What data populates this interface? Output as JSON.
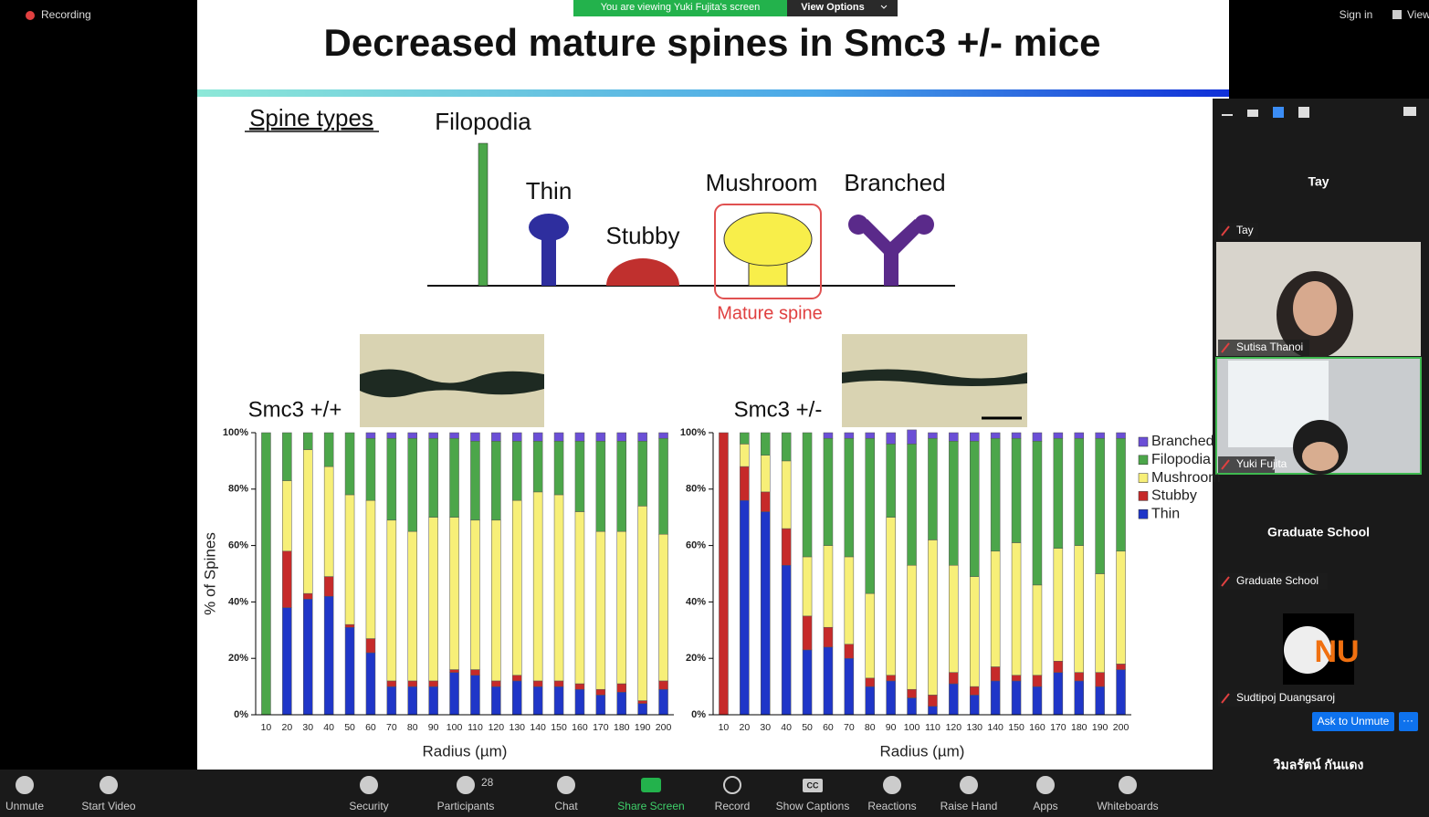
{
  "zoom": {
    "recording": "Recording",
    "banner": "You are viewing Yuki Fujita's screen",
    "view_options": "View Options",
    "sign_in": "Sign in",
    "view": "View"
  },
  "slide": {
    "title": "Decreased mature spines in Smc3 +/- mice",
    "spine_types": "Spine types",
    "labels": [
      "Filopodia",
      "Thin",
      "Stubby",
      "Mushroom",
      "Branched"
    ],
    "mature": "Mature spine",
    "genotypes": [
      "Smc3 +/+",
      "Smc3 +/-"
    ]
  },
  "chart_data": [
    {
      "type": "bar",
      "stacked": true,
      "categories": [
        "10",
        "20",
        "30",
        "40",
        "50",
        "60",
        "70",
        "80",
        "90",
        "100",
        "110",
        "120",
        "130",
        "140",
        "150",
        "160",
        "170",
        "180",
        "190",
        "200"
      ],
      "series": [
        {
          "color": "#1f36c8",
          "values": [
            0,
            38,
            41,
            42,
            31,
            22,
            10,
            10,
            10,
            15,
            14,
            10,
            12,
            10,
            10,
            9,
            7,
            8,
            4,
            9
          ]
        },
        {
          "color": "#c62a2a",
          "values": [
            0,
            20,
            2,
            7,
            1,
            5,
            2,
            2,
            2,
            1,
            2,
            2,
            2,
            2,
            2,
            2,
            2,
            3,
            1,
            3
          ]
        },
        {
          "color": "#f7ef78",
          "values": [
            0,
            25,
            51,
            39,
            46,
            49,
            57,
            53,
            58,
            54,
            53,
            57,
            62,
            67,
            66,
            61,
            56,
            54,
            69,
            52
          ]
        },
        {
          "color": "#4ca64a",
          "values": [
            100,
            17,
            6,
            12,
            22,
            22,
            29,
            33,
            28,
            28,
            28,
            28,
            21,
            18,
            19,
            25,
            32,
            32,
            23,
            34
          ]
        },
        {
          "color": "#6b4fd6",
          "values": [
            0,
            0,
            0,
            0,
            0,
            2,
            2,
            2,
            2,
            2,
            3,
            3,
            3,
            3,
            3,
            3,
            3,
            3,
            3,
            2
          ]
        }
      ],
      "ylim": [
        0,
        100
      ],
      "yticks": [
        {
          "value": 0,
          "label": "0%"
        },
        {
          "value": 20,
          "label": "20%"
        },
        {
          "value": 40,
          "label": "40%"
        },
        {
          "value": 60,
          "label": "60%"
        },
        {
          "value": 80,
          "label": "80%"
        },
        {
          "value": 100,
          "label": "100%"
        }
      ],
      "xlabel": "Radius (µm)",
      "ylabel": "% of Spines"
    },
    {
      "type": "bar",
      "stacked": true,
      "categories": [
        "10",
        "20",
        "30",
        "40",
        "50",
        "60",
        "70",
        "80",
        "90",
        "100",
        "110",
        "120",
        "130",
        "140",
        "150",
        "160",
        "170",
        "180",
        "190",
        "200"
      ],
      "series": [
        {
          "name": "Thin",
          "color": "#1f36c8",
          "values": [
            0,
            76,
            72,
            53,
            23,
            24,
            20,
            10,
            12,
            6,
            3,
            11,
            7,
            12,
            12,
            10,
            15,
            12,
            10,
            16
          ]
        },
        {
          "name": "Stubby",
          "color": "#c62a2a",
          "values": [
            100,
            12,
            7,
            13,
            12,
            7,
            5,
            3,
            2,
            3,
            4,
            4,
            3,
            5,
            2,
            4,
            4,
            3,
            5,
            2
          ]
        },
        {
          "name": "Mushroom",
          "color": "#f7ef78",
          "values": [
            0,
            8,
            13,
            24,
            21,
            29,
            31,
            30,
            56,
            44,
            55,
            38,
            39,
            41,
            47,
            32,
            40,
            45,
            35,
            40
          ]
        },
        {
          "name": "Filopodia",
          "color": "#4ca64a",
          "values": [
            0,
            4,
            8,
            10,
            44,
            38,
            42,
            55,
            26,
            43,
            36,
            44,
            48,
            40,
            37,
            51,
            39,
            38,
            48,
            40
          ]
        },
        {
          "name": "Branched",
          "color": "#6b4fd6",
          "values": [
            0,
            0,
            0,
            0,
            0,
            2,
            2,
            2,
            4,
            5,
            2,
            3,
            3,
            2,
            2,
            3,
            2,
            2,
            2,
            2
          ]
        }
      ],
      "ylim": [
        0,
        100
      ],
      "yticks": [
        {
          "value": 0,
          "label": "0%"
        },
        {
          "value": 20,
          "label": "20%"
        },
        {
          "value": 40,
          "label": "40%"
        },
        {
          "value": 60,
          "label": "60%"
        },
        {
          "value": 80,
          "label": "80%"
        },
        {
          "value": 100,
          "label": "100%"
        }
      ],
      "xlabel": "Radius (µm)",
      "legend": "outside right"
    }
  ],
  "participants": {
    "headers": [
      "Tay",
      "Graduate School",
      "วิมลรัตน์ กันแดง"
    ],
    "names": [
      "Tay",
      "Sutisa Thanoi",
      "Yuki Fujita",
      "Graduate School",
      "Sudtipoj Duangsaroj"
    ],
    "ask": "Ask to Unmute",
    "more": "···"
  },
  "toolbar": {
    "items": [
      "Unmute",
      "Start Video",
      "Security",
      "Participants",
      "Chat",
      "Share Screen",
      "Record",
      "Show Captions",
      "Reactions",
      "Raise Hand",
      "Apps",
      "Whiteboards"
    ],
    "participant_count": 28,
    "cc": "CC"
  }
}
